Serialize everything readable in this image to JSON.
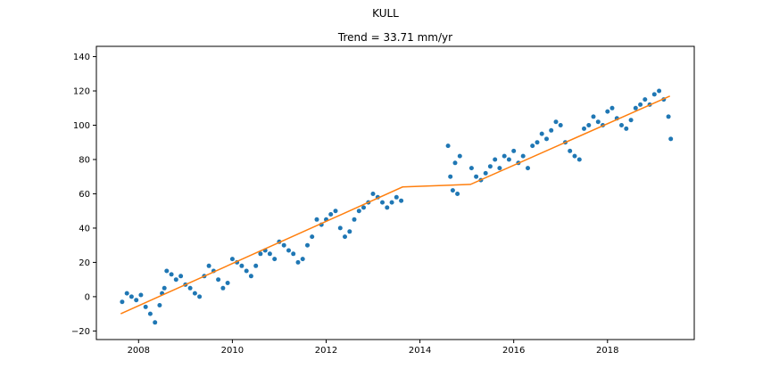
{
  "chart_data": {
    "type": "scatter",
    "suptitle": "KULL",
    "title": "Trend = 33.71 mm/yr",
    "xlabel": "",
    "ylabel": "",
    "xlim": [
      2007.1,
      2019.85
    ],
    "ylim": [
      -25,
      146
    ],
    "xticks": [
      2008,
      2010,
      2012,
      2014,
      2016,
      2018
    ],
    "xtick_labels": [
      "2008",
      "2010",
      "2012",
      "2014",
      "2016",
      "2018"
    ],
    "yticks": [
      -20,
      0,
      20,
      40,
      60,
      80,
      100,
      120,
      140
    ],
    "ytick_labels": [
      "−20",
      "0",
      "20",
      "40",
      "60",
      "80",
      "100",
      "120",
      "140"
    ],
    "grid": false,
    "colors": {
      "points": "#1f77b4",
      "trend": "#ff7f0e"
    },
    "series": [
      {
        "kind": "points",
        "x": [
          2007.65,
          2007.75,
          2007.85,
          2007.95,
          2008.05,
          2008.15,
          2008.25,
          2008.35,
          2008.45,
          2008.5,
          2008.55,
          2008.6,
          2008.7,
          2008.8,
          2008.9,
          2009.0,
          2009.1,
          2009.2,
          2009.3,
          2009.4,
          2009.5,
          2009.6,
          2009.7,
          2009.8,
          2009.9,
          2010.0,
          2010.1,
          2010.2,
          2010.3,
          2010.4,
          2010.5,
          2010.6,
          2010.7,
          2010.8,
          2010.9,
          2011.0,
          2011.1,
          2011.2,
          2011.3,
          2011.4,
          2011.5,
          2011.6,
          2011.7,
          2011.8,
          2011.9,
          2012.0,
          2012.1,
          2012.2,
          2012.3,
          2012.4,
          2012.5,
          2012.6,
          2012.7,
          2012.8,
          2012.9,
          2013.0,
          2013.1,
          2013.2,
          2013.3,
          2013.4,
          2013.5,
          2013.6,
          2014.6,
          2014.65,
          2014.7,
          2014.75,
          2014.8,
          2014.85,
          2015.1,
          2015.2,
          2015.3,
          2015.4,
          2015.5,
          2015.6,
          2015.7,
          2015.8,
          2015.9,
          2016.0,
          2016.1,
          2016.2,
          2016.3,
          2016.4,
          2016.5,
          2016.6,
          2016.7,
          2016.8,
          2016.9,
          2017.0,
          2017.1,
          2017.2,
          2017.3,
          2017.4,
          2017.5,
          2017.6,
          2017.7,
          2017.8,
          2017.9,
          2018.0,
          2018.1,
          2018.2,
          2018.3,
          2018.4,
          2018.5,
          2018.6,
          2018.7,
          2018.8,
          2018.9,
          2019.0,
          2019.1,
          2019.2,
          2019.3,
          2019.35
        ],
        "y": [
          -3,
          2,
          0,
          -2,
          1,
          -6,
          -10,
          -15,
          -5,
          2,
          5,
          15,
          13,
          10,
          12,
          7,
          5,
          2,
          0,
          12,
          18,
          15,
          10,
          5,
          8,
          22,
          20,
          18,
          15,
          12,
          18,
          25,
          27,
          25,
          22,
          32,
          30,
          27,
          25,
          20,
          22,
          30,
          35,
          45,
          42,
          45,
          48,
          50,
          40,
          35,
          38,
          45,
          50,
          52,
          55,
          60,
          58,
          55,
          52,
          55,
          58,
          56,
          88,
          70,
          62,
          78,
          60,
          82,
          75,
          70,
          68,
          72,
          76,
          80,
          75,
          82,
          80,
          85,
          78,
          82,
          75,
          88,
          90,
          95,
          92,
          97,
          102,
          100,
          90,
          85,
          82,
          80,
          98,
          100,
          105,
          102,
          100,
          108,
          110,
          104,
          100,
          98,
          103,
          110,
          112,
          115,
          112,
          118,
          120,
          115,
          105,
          92
        ]
      },
      {
        "kind": "trend",
        "x": [
          2007.62,
          2013.63,
          2015.08,
          2019.33
        ],
        "y": [
          -10,
          64,
          65.5,
          117
        ]
      }
    ]
  }
}
